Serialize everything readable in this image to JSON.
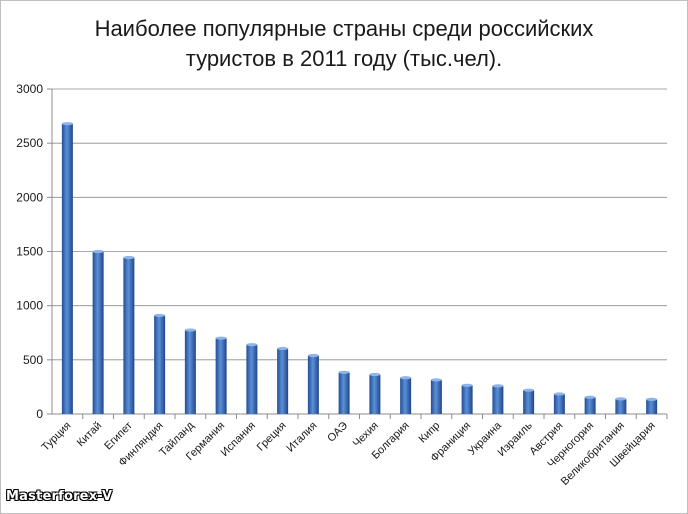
{
  "title_line1": "Наиболее популярные страны среди российских",
  "title_line2": "туристов в 2011 году (тыс.чел).",
  "watermark": "Masterforex-V",
  "chart_data": {
    "type": "bar",
    "title": "Наиболее популярные страны среди российских туристов в 2011 году (тыс.чел).",
    "xlabel": "",
    "ylabel": "",
    "ylim": [
      0,
      3000
    ],
    "yticks": [
      0,
      500,
      1000,
      1500,
      2000,
      2500,
      3000
    ],
    "grid": true,
    "legend": "none",
    "bar_color": "#3e74bf",
    "categories": [
      "Турция",
      "Китай",
      "Египет",
      "Финляндия",
      "Тайланд",
      "Германия",
      "Испания",
      "Греция",
      "Италия",
      "ОАЭ",
      "Чехия",
      "Болгария",
      "Кипр",
      "Франиция",
      "Украина",
      "Израиль",
      "Австрия",
      "Черногория",
      "Великобритания",
      "Швейцария"
    ],
    "values": [
      2680,
      1500,
      1445,
      910,
      775,
      700,
      640,
      605,
      540,
      385,
      365,
      335,
      315,
      265,
      260,
      220,
      185,
      155,
      140,
      135
    ]
  }
}
